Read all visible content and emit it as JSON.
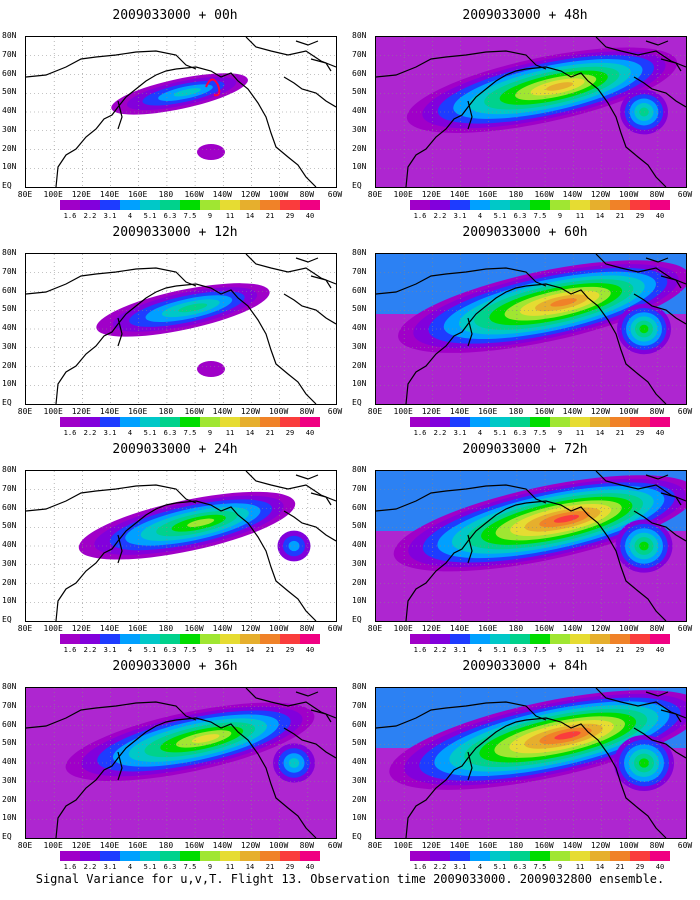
{
  "caption": "Signal Variance for u,v,T. Flight 13. Observation time 2009033000. 2009032800 ensemble.",
  "panels": [
    {
      "title": "2009033000 + 00h",
      "spread": 0.18
    },
    {
      "title": "2009033000 + 12h",
      "spread": 0.35
    },
    {
      "title": "2009033000 + 24h",
      "spread": 0.55
    },
    {
      "title": "2009033000 + 36h",
      "spread": 0.7
    },
    {
      "title": "2009033000 + 48h",
      "spread": 0.8
    },
    {
      "title": "2009033000 + 60h",
      "spread": 0.9
    },
    {
      "title": "2009033000 + 72h",
      "spread": 0.95
    },
    {
      "title": "2009033000 + 84h",
      "spread": 1.0
    }
  ],
  "lat_labels": [
    "80N",
    "70N",
    "60N",
    "50N",
    "40N",
    "30N",
    "20N",
    "10N",
    "EQ"
  ],
  "lon_labels": [
    "80E",
    "100E",
    "120E",
    "140E",
    "160E",
    "180",
    "160W",
    "140W",
    "120W",
    "100W",
    "80W",
    "60W"
  ],
  "colorbar": {
    "labels": [
      "1.6",
      "2.2",
      "3.1",
      "4",
      "5.1",
      "6.3",
      "7.5",
      "9",
      "11",
      "14",
      "21",
      "29",
      "40"
    ],
    "colors": [
      "#a000c8",
      "#8200dc",
      "#1e3cff",
      "#00a0ff",
      "#00c8c8",
      "#00d28c",
      "#00dc00",
      "#a0e632",
      "#e6dc32",
      "#e6af2d",
      "#f08228",
      "#fa3c3c",
      "#f00082"
    ]
  }
}
